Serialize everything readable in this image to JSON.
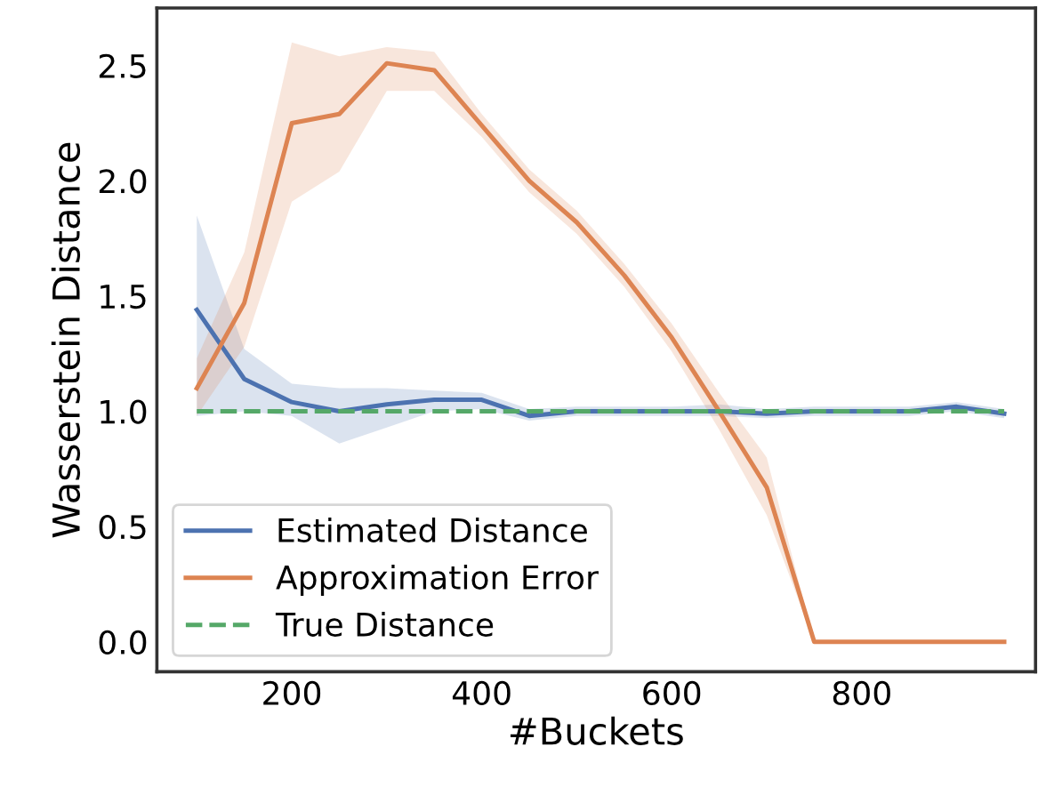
{
  "chart_data": {
    "type": "line",
    "xlabel": "#Buckets",
    "ylabel": "Wasserstein Distance",
    "x": [
      100,
      150,
      200,
      250,
      300,
      350,
      400,
      450,
      500,
      550,
      600,
      650,
      700,
      750,
      800,
      850,
      900,
      950
    ],
    "series": [
      {
        "name": "Estimated Distance",
        "color": "#4c72b0",
        "line_style": "solid",
        "values": [
          1.44,
          1.14,
          1.04,
          1.0,
          1.03,
          1.05,
          1.05,
          0.98,
          1.0,
          1.0,
          1.0,
          1.0,
          0.99,
          1.0,
          1.0,
          1.0,
          1.02,
          0.99
        ],
        "lower": [
          0.98,
          1.0,
          0.98,
          0.86,
          0.93,
          1.0,
          1.01,
          0.96,
          0.98,
          0.98,
          0.98,
          0.98,
          0.97,
          0.98,
          0.98,
          0.98,
          1.0,
          0.97
        ],
        "upper": [
          1.85,
          1.27,
          1.12,
          1.1,
          1.1,
          1.09,
          1.08,
          1.01,
          1.02,
          1.02,
          1.02,
          1.03,
          1.01,
          1.02,
          1.02,
          1.02,
          1.04,
          1.01
        ]
      },
      {
        "name": "Approximation Error",
        "color": "#dd8452",
        "line_style": "solid",
        "values": [
          1.1,
          1.47,
          2.25,
          2.29,
          2.51,
          2.48,
          2.24,
          2.0,
          1.82,
          1.59,
          1.32,
          1.0,
          0.67,
          0.0,
          0.0,
          0.0,
          0.0,
          0.0
        ],
        "lower": [
          0.98,
          1.28,
          1.91,
          2.04,
          2.39,
          2.39,
          2.19,
          1.95,
          1.77,
          1.54,
          1.26,
          0.92,
          0.55,
          0.0,
          0.0,
          0.0,
          0.0,
          0.0
        ],
        "upper": [
          1.23,
          1.69,
          2.6,
          2.54,
          2.58,
          2.56,
          2.29,
          2.05,
          1.87,
          1.64,
          1.38,
          1.08,
          0.8,
          0.0,
          0.0,
          0.0,
          0.0,
          0.0
        ]
      },
      {
        "name": "True Distance",
        "color": "#55a868",
        "line_style": "dashed",
        "values": [
          1.0,
          1.0,
          1.0,
          1.0,
          1.0,
          1.0,
          1.0,
          1.0,
          1.0,
          1.0,
          1.0,
          1.0,
          1.0,
          1.0,
          1.0,
          1.0,
          1.0,
          1.0
        ]
      }
    ],
    "xlim": [
      58,
      983
    ],
    "ylim": [
      -0.13,
      2.75
    ],
    "xticks": [
      200,
      400,
      600,
      800
    ],
    "yticks": [
      {
        "value": 0,
        "label": "0.0"
      },
      0.5,
      {
        "value": 1,
        "label": "1.0"
      },
      1.5,
      {
        "value": 2,
        "label": "2.0"
      },
      2.5
    ],
    "grid": false,
    "legend": "lower left",
    "marker": "none"
  }
}
